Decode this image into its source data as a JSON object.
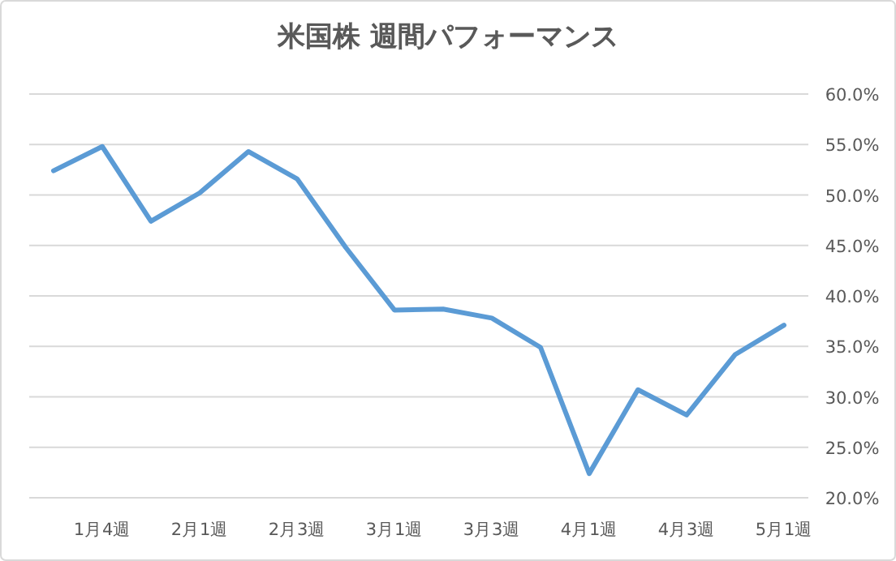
{
  "chart_data": {
    "type": "line",
    "title": "米国株 週間パフォーマンス",
    "categories": [
      null,
      "1月4週",
      null,
      "2月1週",
      null,
      "2月3週",
      null,
      "3月1週",
      null,
      "3月3週",
      null,
      "4月1週",
      null,
      "4月3週",
      null,
      "5月1週"
    ],
    "series": [
      {
        "color": "#5b9bd5",
        "values": [
          52.4,
          54.8,
          47.4,
          50.2,
          54.3,
          51.6,
          44.8,
          38.6,
          38.7,
          37.8,
          34.9,
          22.4,
          30.7,
          28.2,
          34.2,
          37.1
        ]
      }
    ],
    "ylim": [
      20,
      60
    ],
    "yticks": [
      {
        "value": 20,
        "label": "20.0%"
      },
      {
        "value": 25,
        "label": "25.0%"
      },
      {
        "value": 30,
        "label": "30.0%"
      },
      {
        "value": 35,
        "label": "35.0%"
      },
      {
        "value": 40,
        "label": "40.0%"
      },
      {
        "value": 45,
        "label": "45.0%"
      },
      {
        "value": 50,
        "label": "50.0%"
      },
      {
        "value": 55,
        "label": "55.0%"
      },
      {
        "value": 60,
        "label": "60.0%"
      }
    ],
    "grid": "y",
    "marker": "none",
    "line_style": "solid"
  }
}
